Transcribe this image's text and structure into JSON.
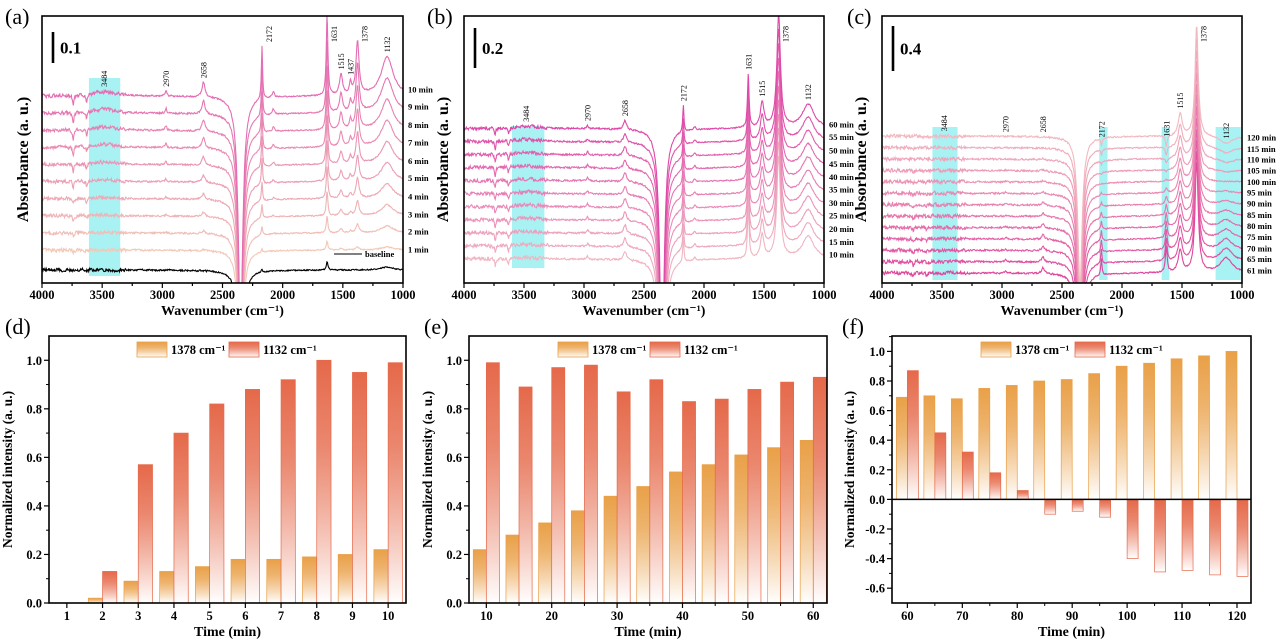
{
  "chart_data": [
    {
      "panel_letter": "(a)",
      "type": "line",
      "title": "",
      "xlabel": "Wavenumber (cm⁻¹)",
      "ylabel": "Absorbance (a. u.)",
      "xlim": [
        4000,
        1000
      ],
      "xticks": [
        "4000",
        "3500",
        "3000",
        "2500",
        "2000",
        "1500",
        "1000"
      ],
      "scale_bar": "0.1",
      "scale_bar_value_au": 0.1,
      "offset_step_au": 0.057,
      "highlights": [
        [
          3610,
          3350
        ]
      ],
      "peak_labels": [
        "3484",
        "2970",
        "2658",
        "2172",
        "1631",
        "1515",
        "1437",
        "1378",
        "1132"
      ],
      "peaks": [
        {
          "wn": 3740,
          "width": 6,
          "amp": [
            -0.01,
            -0.04
          ]
        },
        {
          "wn": 3630,
          "width": 6,
          "amp": [
            -0.005,
            -0.03
          ]
        },
        {
          "wn": 3484,
          "width": 120,
          "amp": [
            0.0,
            0.015
          ]
        },
        {
          "wn": 2970,
          "width": 8,
          "amp": [
            0.0,
            0.02
          ]
        },
        {
          "wn": 2658,
          "width": 15,
          "amp": [
            0.005,
            0.05
          ]
        },
        {
          "wn": 2350,
          "width": 22,
          "amp": [
            -0.5,
            -0.8
          ]
        },
        {
          "wn": 2172,
          "width": 6,
          "amp": [
            0.01,
            0.18
          ]
        },
        {
          "wn": 2077,
          "width": 10,
          "amp": [
            0.0,
            0.02
          ]
        },
        {
          "wn": 1631,
          "width": 8,
          "amp": [
            0.03,
            0.27
          ]
        },
        {
          "wn": 1515,
          "width": 15,
          "amp": [
            0.005,
            0.07
          ]
        },
        {
          "wn": 1437,
          "width": 10,
          "amp": [
            0.003,
            0.04
          ]
        },
        {
          "wn": 1378,
          "width": 15,
          "amp": [
            0.01,
            0.18
          ]
        },
        {
          "wn": 1132,
          "width": 60,
          "amp": [
            0.01,
            0.13
          ]
        }
      ],
      "colors": [
        "#F2C8B6",
        "#E46CB2"
      ],
      "traces": [
        {
          "label": "1 min"
        },
        {
          "label": "2 min"
        },
        {
          "label": "3 min"
        },
        {
          "label": "4 min"
        },
        {
          "label": "5 min"
        },
        {
          "label": "6 min"
        },
        {
          "label": "7 min"
        },
        {
          "label": "8 min"
        },
        {
          "label": "9 min"
        },
        {
          "label": "10 min"
        }
      ],
      "baseline": {
        "label": "baseline",
        "color": "#000000",
        "peaks": [
          {
            "wn": 2350,
            "width": 22,
            "amp": -0.5
          },
          {
            "wn": 2172,
            "width": 6,
            "amp": 0.01
          },
          {
            "wn": 1631,
            "width": 8,
            "amp": 0.03
          },
          {
            "wn": 1132,
            "width": 60,
            "amp": 0.01
          }
        ]
      }
    },
    {
      "panel_letter": "(b)",
      "type": "line",
      "title": "",
      "xlabel": "Wavenumber (cm⁻¹)",
      "ylabel": "Absorbance (a. u.)",
      "xlim": [
        4000,
        1000
      ],
      "xticks": [
        "4000",
        "3500",
        "3000",
        "2500",
        "2000",
        "1500",
        "1000"
      ],
      "scale_bar": "0.2",
      "scale_bar_value_au": 0.2,
      "offset_step_au": 0.087,
      "highlights": [
        [
          3600,
          3330
        ]
      ],
      "peak_labels": [
        "3484",
        "2970",
        "2658",
        "2172",
        "1631",
        "1515",
        "1378",
        "1132"
      ],
      "peaks": [
        {
          "wn": 3740,
          "width": 6,
          "amp": [
            -0.05,
            -0.05
          ]
        },
        {
          "wn": 3630,
          "width": 6,
          "amp": [
            -0.04,
            -0.04
          ]
        },
        {
          "wn": 3484,
          "width": 120,
          "amp": [
            0.01,
            0.015
          ]
        },
        {
          "wn": 2970,
          "width": 8,
          "amp": [
            0.02,
            0.02
          ]
        },
        {
          "wn": 2658,
          "width": 15,
          "amp": [
            0.06,
            0.06
          ]
        },
        {
          "wn": 2350,
          "width": 22,
          "amp": [
            -1.6,
            -1.6
          ]
        },
        {
          "wn": 2172,
          "width": 6,
          "amp": [
            0.17,
            0.18
          ]
        },
        {
          "wn": 2077,
          "width": 10,
          "amp": [
            0.02,
            0.02
          ]
        },
        {
          "wn": 1631,
          "width": 8,
          "amp": [
            0.35,
            0.36
          ]
        },
        {
          "wn": 1515,
          "width": 18,
          "amp": [
            0.16,
            0.17
          ]
        },
        {
          "wn": 1378,
          "width": 18,
          "amp": [
            0.68,
            0.75
          ]
        },
        {
          "wn": 1132,
          "width": 60,
          "amp": [
            0.15,
            0.16
          ]
        }
      ],
      "colors": [
        "#F0B6C2",
        "#DE48A8"
      ],
      "traces": [
        {
          "label": "10 min"
        },
        {
          "label": "15 min"
        },
        {
          "label": "20 min"
        },
        {
          "label": "25 min"
        },
        {
          "label": "30 min"
        },
        {
          "label": "35 min"
        },
        {
          "label": "40 min"
        },
        {
          "label": "45 min"
        },
        {
          "label": "50 min"
        },
        {
          "label": "55 min"
        },
        {
          "label": "60 min"
        }
      ]
    },
    {
      "panel_letter": "(c)",
      "type": "line",
      "title": "",
      "xlabel": "Wavenumber (cm⁻¹)",
      "ylabel": "Absorbance (a. u.)",
      "xlim": [
        4000,
        1000
      ],
      "xticks": [
        "4000",
        "3500",
        "3000",
        "2500",
        "2000",
        "1500",
        "1000"
      ],
      "scale_bar": "0.4",
      "scale_bar_value_au": 0.4,
      "offset_step_au": 0.152,
      "highlights": [
        [
          3580,
          3370
        ],
        [
          2190,
          2120
        ],
        [
          1670,
          1605
        ],
        [
          1220,
          1010
        ]
      ],
      "peak_labels": [
        "3484",
        "2970",
        "2658",
        "2172",
        "1631",
        "1515",
        "1378",
        "1132"
      ],
      "peaks": [
        {
          "wn": 3740,
          "width": 6,
          "amp": [
            -0.06,
            -0.01
          ]
        },
        {
          "wn": 3630,
          "width": 6,
          "amp": [
            -0.04,
            -0.01
          ]
        },
        {
          "wn": 2970,
          "width": 8,
          "amp": [
            0.03,
            0.0
          ]
        },
        {
          "wn": 2658,
          "width": 15,
          "amp": [
            0.08,
            0.0
          ]
        },
        {
          "wn": 2350,
          "width": 22,
          "amp": [
            -2.0,
            -2.0
          ]
        },
        {
          "wn": 2172,
          "width": 6,
          "amp": [
            0.22,
            -0.1
          ]
        },
        {
          "wn": 1631,
          "width": 9,
          "amp": [
            0.35,
            -0.15
          ]
        },
        {
          "wn": 1515,
          "width": 20,
          "amp": [
            0.3,
            0.3
          ]
        },
        {
          "wn": 1378,
          "width": 16,
          "amp": [
            1.47,
            1.47
          ]
        },
        {
          "wn": 1132,
          "width": 60,
          "amp": [
            0.2,
            -0.1
          ]
        }
      ],
      "colors": [
        "#DF459D",
        "#F2B8C0"
      ],
      "traces": [
        {
          "label": "61 min"
        },
        {
          "label": "65 min"
        },
        {
          "label": "70 min"
        },
        {
          "label": "75 min"
        },
        {
          "label": "80 min"
        },
        {
          "label": "85 min"
        },
        {
          "label": "90 min"
        },
        {
          "label": "95 min"
        },
        {
          "label": "100 min"
        },
        {
          "label": "105 min"
        },
        {
          "label": "110 min"
        },
        {
          "label": "115 min"
        },
        {
          "label": "120 min"
        }
      ]
    },
    {
      "panel_letter": "(d)",
      "type": "bar",
      "title": "",
      "xlabel": "Time (min)",
      "ylabel": "Normalized intensity (a. u.)",
      "xlim": [
        0.5,
        10.5
      ],
      "ylim": [
        0,
        1.1
      ],
      "xticks": [
        "1",
        "2",
        "3",
        "4",
        "5",
        "6",
        "7",
        "8",
        "9",
        "10"
      ],
      "yticks": [
        "0.0",
        "0.2",
        "0.4",
        "0.6",
        "0.8",
        "1.0"
      ],
      "legend_placement": "top-center",
      "x": [
        1,
        2,
        3,
        4,
        5,
        6,
        7,
        8,
        9,
        10
      ],
      "series": [
        {
          "name": "1378 cm⁻¹",
          "color": "#E9A048",
          "values": [
            0.0,
            0.02,
            0.09,
            0.13,
            0.15,
            0.18,
            0.18,
            0.19,
            0.2,
            0.22
          ]
        },
        {
          "name": "1132 cm⁻¹",
          "color": "#E5694A",
          "values": [
            0.0,
            0.13,
            0.57,
            0.7,
            0.82,
            0.88,
            0.92,
            1.0,
            0.95,
            0.99
          ]
        }
      ]
    },
    {
      "panel_letter": "(e)",
      "type": "bar",
      "title": "",
      "xlabel": "Time (min)",
      "ylabel": "Normalized intensity (a. u.)",
      "xlim": [
        7.35,
        62.1
      ],
      "ylim": [
        0,
        1.1
      ],
      "xticks": [
        "10",
        "20",
        "30",
        "40",
        "50",
        "60"
      ],
      "yticks": [
        "0.0",
        "0.2",
        "0.4",
        "0.6",
        "0.8",
        "1.0"
      ],
      "legend_placement": "top-center",
      "x": [
        10,
        15,
        20,
        25,
        30,
        35,
        40,
        45,
        50,
        55,
        60
      ],
      "series": [
        {
          "name": "1378 cm⁻¹",
          "color": "#E9A048",
          "values": [
            0.22,
            0.28,
            0.33,
            0.38,
            0.44,
            0.48,
            0.54,
            0.57,
            0.61,
            0.64,
            0.67
          ]
        },
        {
          "name": "1132 cm⁻¹",
          "color": "#E5694A",
          "values": [
            0.99,
            0.89,
            0.97,
            0.98,
            0.87,
            0.92,
            0.83,
            0.84,
            0.88,
            0.91,
            0.93
          ]
        }
      ]
    },
    {
      "panel_letter": "(f)",
      "type": "bar",
      "title": "",
      "xlabel": "Time (min)",
      "ylabel": "Normalized intensity (a. u.)",
      "xlim": [
        57.2,
        122.55
      ],
      "ylim": [
        -0.7,
        1.104
      ],
      "xticks": [
        "60",
        "70",
        "80",
        "90",
        "100",
        "110",
        "120"
      ],
      "yticks": [
        "-0.6",
        "-0.4",
        "-0.2",
        "0.0",
        "0.2",
        "0.4",
        "0.6",
        "0.8",
        "1.0"
      ],
      "legend_placement": "top-center",
      "x": [
        60,
        65,
        70,
        75,
        80,
        85,
        90,
        95,
        100,
        105,
        110,
        115,
        120
      ],
      "series": [
        {
          "name": "1378 cm⁻¹",
          "color": "#E9A048",
          "values": [
            0.69,
            0.7,
            0.68,
            0.75,
            0.77,
            0.8,
            0.81,
            0.85,
            0.9,
            0.92,
            0.95,
            0.97,
            1.0
          ]
        },
        {
          "name": "1132 cm⁻¹",
          "color": "#E5694A",
          "values": [
            0.87,
            0.45,
            0.32,
            0.18,
            0.06,
            -0.1,
            -0.08,
            -0.12,
            -0.4,
            -0.49,
            -0.48,
            -0.51,
            -0.52
          ]
        }
      ]
    }
  ]
}
